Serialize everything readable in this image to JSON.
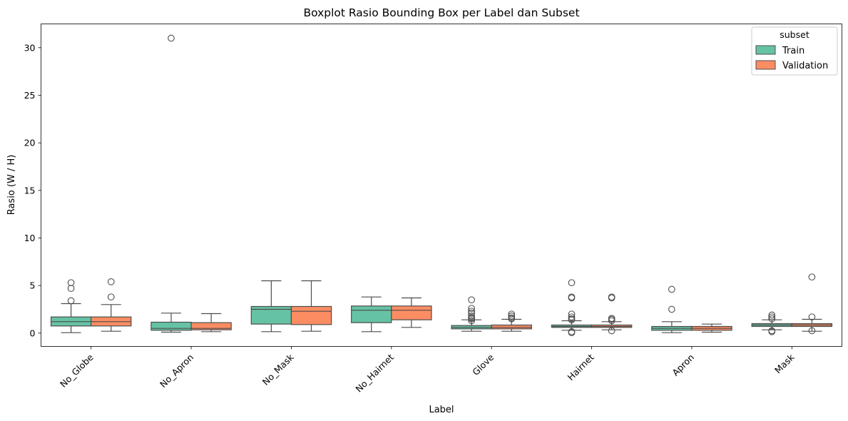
{
  "chart_data": {
    "type": "boxplot",
    "title": "Boxplot Rasio Bounding Box per Label dan Subset",
    "xlabel": "Label",
    "ylabel": "Rasio (W / H)",
    "categories": [
      "No_Globe",
      "No_Apron",
      "No_Mask",
      "No_Hairnet",
      "Glove",
      "Hairnet",
      "Apron",
      "Mask"
    ],
    "ylim": [
      -1.4,
      32.5
    ],
    "yticks": [
      0,
      5,
      10,
      15,
      20,
      25,
      30
    ],
    "grid": false,
    "legend": {
      "title": "subset",
      "placement": "top-right"
    },
    "series": [
      {
        "name": "Train",
        "color": "#66c2a5",
        "boxes": [
          {
            "whislo": 0.05,
            "q1": 0.75,
            "med": 1.2,
            "q3": 1.7,
            "whishi": 3.1,
            "fliers": [
              3.4,
              4.7,
              5.3
            ]
          },
          {
            "whislo": 0.1,
            "q1": 0.3,
            "med": 0.5,
            "q3": 1.15,
            "whishi": 2.1,
            "fliers": [
              31.0
            ]
          },
          {
            "whislo": 0.15,
            "q1": 0.95,
            "med": 2.5,
            "q3": 2.8,
            "whishi": 5.5,
            "fliers": []
          },
          {
            "whislo": 0.15,
            "q1": 1.1,
            "med": 2.4,
            "q3": 2.85,
            "whishi": 3.8,
            "fliers": []
          },
          {
            "whislo": 0.2,
            "q1": 0.45,
            "med": 0.6,
            "q3": 0.8,
            "whishi": 1.4,
            "fliers": [
              1.3,
              1.5,
              1.6,
              1.8,
              2.1,
              2.3,
              2.6,
              3.5
            ]
          },
          {
            "whislo": 0.3,
            "q1": 0.6,
            "med": 0.7,
            "q3": 0.85,
            "whishi": 1.3,
            "fliers": [
              0.05,
              0.15,
              1.4,
              1.5,
              1.7,
              2.0,
              3.7,
              3.8,
              5.3
            ]
          },
          {
            "whislo": 0.05,
            "q1": 0.3,
            "med": 0.5,
            "q3": 0.7,
            "whishi": 1.2,
            "fliers": [
              2.5,
              4.6
            ]
          },
          {
            "whislo": 0.35,
            "q1": 0.7,
            "med": 0.85,
            "q3": 1.0,
            "whishi": 1.4,
            "fliers": [
              0.15,
              0.25,
              1.5,
              1.7,
              1.9
            ]
          }
        ]
      },
      {
        "name": "Validation",
        "color": "#fc8d62",
        "boxes": [
          {
            "whislo": 0.2,
            "q1": 0.75,
            "med": 1.2,
            "q3": 1.7,
            "whishi": 3.0,
            "fliers": [
              3.8,
              5.4
            ]
          },
          {
            "whislo": 0.15,
            "q1": 0.35,
            "med": 0.5,
            "q3": 1.1,
            "whishi": 2.05,
            "fliers": []
          },
          {
            "whislo": 0.2,
            "q1": 0.9,
            "med": 2.3,
            "q3": 2.8,
            "whishi": 5.5,
            "fliers": []
          },
          {
            "whislo": 0.6,
            "q1": 1.4,
            "med": 2.4,
            "q3": 2.85,
            "whishi": 3.7,
            "fliers": []
          },
          {
            "whislo": 0.2,
            "q1": 0.45,
            "med": 0.6,
            "q3": 0.85,
            "whishi": 1.45,
            "fliers": [
              1.5,
              1.6,
              1.8,
              2.0
            ]
          },
          {
            "whislo": 0.35,
            "q1": 0.6,
            "med": 0.7,
            "q3": 0.85,
            "whishi": 1.2,
            "fliers": [
              0.25,
              1.3,
              1.45,
              1.55,
              3.7,
              3.8
            ]
          },
          {
            "whislo": 0.1,
            "q1": 0.3,
            "med": 0.5,
            "q3": 0.7,
            "whishi": 0.95,
            "fliers": []
          },
          {
            "whislo": 0.2,
            "q1": 0.7,
            "med": 0.85,
            "q3": 1.0,
            "whishi": 1.45,
            "fliers": [
              0.25,
              1.7,
              5.9
            ]
          }
        ]
      }
    ]
  }
}
